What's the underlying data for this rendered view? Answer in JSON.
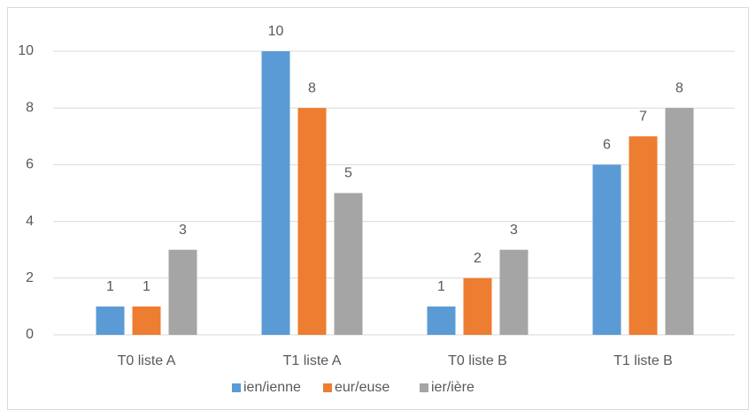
{
  "chart_data": {
    "type": "bar",
    "categories": [
      "T0 liste A",
      "T1 liste A",
      "T0 liste B",
      "T1 liste B"
    ],
    "series": [
      {
        "name": "ien/ienne",
        "color": "#5b9bd5",
        "values": [
          1,
          10,
          1,
          6
        ]
      },
      {
        "name": "eur/euse",
        "color": "#ed7d31",
        "values": [
          1,
          8,
          2,
          7
        ]
      },
      {
        "name": "ier/ière",
        "color": "#a5a5a5",
        "values": [
          3,
          5,
          3,
          8
        ]
      }
    ],
    "ylim": [
      0,
      10
    ],
    "yticks": [
      0,
      2,
      4,
      6,
      8,
      10
    ],
    "grid": true,
    "legend": "bottom"
  }
}
